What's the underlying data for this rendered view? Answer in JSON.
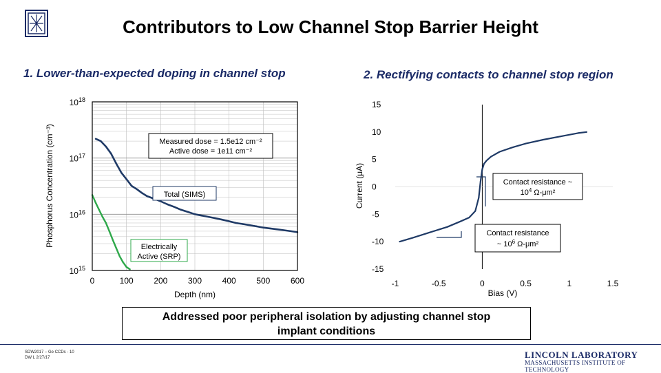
{
  "header": {
    "title": "Contributors to Low Channel Stop Barrier Height",
    "sub1": "1.  Lower-than-expected doping in channel stop",
    "sub2": "2.  Rectifying contacts to channel stop region"
  },
  "callout": {
    "line1": "Addressed poor peripheral isolation by adjusting channel stop",
    "line2": "implant conditions"
  },
  "footer": {
    "line1": "SDW2017 – Ge CCDs - 10",
    "line2": "DW L 2/27/17",
    "lab_name": "LINCOLN LABORATORY",
    "lab_sub": "MASSACHUSETTS INSTITUTE OF TECHNOLOGY"
  },
  "colors": {
    "sims": "#1f3a66",
    "srp": "#2ea84a",
    "axis": "#000000",
    "grid": "#bfbfbf",
    "brand": "#1a2a66"
  },
  "chart_data": [
    {
      "type": "line",
      "xlabel": "Depth (nm)",
      "ylabel": "Phosphorus Concentration (cm⁻³)",
      "xlim": [
        0,
        600
      ],
      "ylim": [
        1000000000000000.0,
        1e+18
      ],
      "yscale": "log",
      "grid": true,
      "x_ticks": [
        "0",
        "100",
        "200",
        "300",
        "400",
        "500",
        "600"
      ],
      "y_ticks": [
        {
          "base": "10",
          "exp": "15"
        },
        {
          "base": "10",
          "exp": "16"
        },
        {
          "base": "10",
          "exp": "17"
        },
        {
          "base": "10",
          "exp": "18"
        }
      ],
      "annotations": {
        "dose": [
          "Measured dose = 1.5e12 cm⁻²",
          "Active dose = 1e11 cm⁻²"
        ],
        "sims_label": "Total (SIMS)",
        "srp_label": [
          "Electrically",
          "Active (SRP)"
        ]
      },
      "series": [
        {
          "name": "Total (SIMS)",
          "x": [
            10,
            25,
            40,
            55,
            70,
            85,
            100,
            115,
            130,
            145,
            160,
            180,
            200,
            220,
            240,
            260,
            280,
            300,
            320,
            340,
            360,
            380,
            400,
            420,
            440,
            460,
            480,
            500,
            520,
            540,
            560,
            580,
            600
          ],
          "y": [
            2.2e+17,
            2e+17,
            1.6e+17,
            1.2e+17,
            8e+16,
            5.5e+16,
            4.2e+16,
            3.2e+16,
            2.8e+16,
            2.4e+16,
            2.1e+16,
            1.9e+16,
            1.7e+16,
            1.5e+16,
            1.35e+16,
            1.2e+16,
            1.1e+16,
            1e+16,
            9500000000000000.0,
            9000000000000000.0,
            8500000000000000.0,
            8000000000000000.0,
            7500000000000000.0,
            7000000000000000.0,
            6700000000000000.0,
            6400000000000000.0,
            6100000000000000.0,
            5800000000000000.0,
            5600000000000000.0,
            5400000000000000.0,
            5200000000000000.0,
            5000000000000000.0,
            4800000000000000.0
          ]
        },
        {
          "name": "Electrically Active (SRP)",
          "x": [
            0,
            10,
            20,
            30,
            40,
            50,
            60,
            70,
            80,
            90,
            100,
            110
          ],
          "y": [
            2.2e+16,
            1.6e+16,
            1.2e+16,
            9000000000000000.0,
            7000000000000000.0,
            5000000000000000.0,
            3500000000000000.0,
            2500000000000000.0,
            1800000000000000.0,
            1400000000000000.0,
            1150000000000000.0,
            1050000000000000.0
          ]
        }
      ]
    },
    {
      "type": "line",
      "xlabel": "Bias (V)",
      "ylabel": "Current (μA)",
      "xlim": [
        -1,
        1.5
      ],
      "ylim": [
        -15,
        15
      ],
      "grid": false,
      "x_ticks": [
        "-1",
        "-0.5",
        "0",
        "0.5",
        "1",
        "1.5"
      ],
      "y_ticks": [
        "-15",
        "-10",
        "-5",
        "0",
        "5",
        "10",
        "15"
      ],
      "annotations": {
        "forward": {
          "text": "Contact resistance ~",
          "base": "10",
          "exp": "4",
          "unit": "Ω-μm²"
        },
        "reverse": {
          "text": "Contact resistance",
          "prefix": "~ ",
          "base": "10",
          "exp": "6",
          "unit": "Ω-μm²"
        }
      },
      "series": [
        {
          "name": "I-V",
          "x": [
            -0.95,
            -0.8,
            -0.6,
            -0.4,
            -0.25,
            -0.15,
            -0.08,
            -0.04,
            -0.02,
            0.0,
            0.02,
            0.05,
            0.1,
            0.2,
            0.35,
            0.5,
            0.7,
            0.9,
            1.1,
            1.2
          ],
          "y": [
            -10.0,
            -9.3,
            -8.3,
            -7.3,
            -6.3,
            -5.6,
            -4.4,
            -2.0,
            1.0,
            3.2,
            4.2,
            4.8,
            5.5,
            6.4,
            7.2,
            7.9,
            8.6,
            9.2,
            9.8,
            10.0
          ]
        }
      ]
    }
  ]
}
